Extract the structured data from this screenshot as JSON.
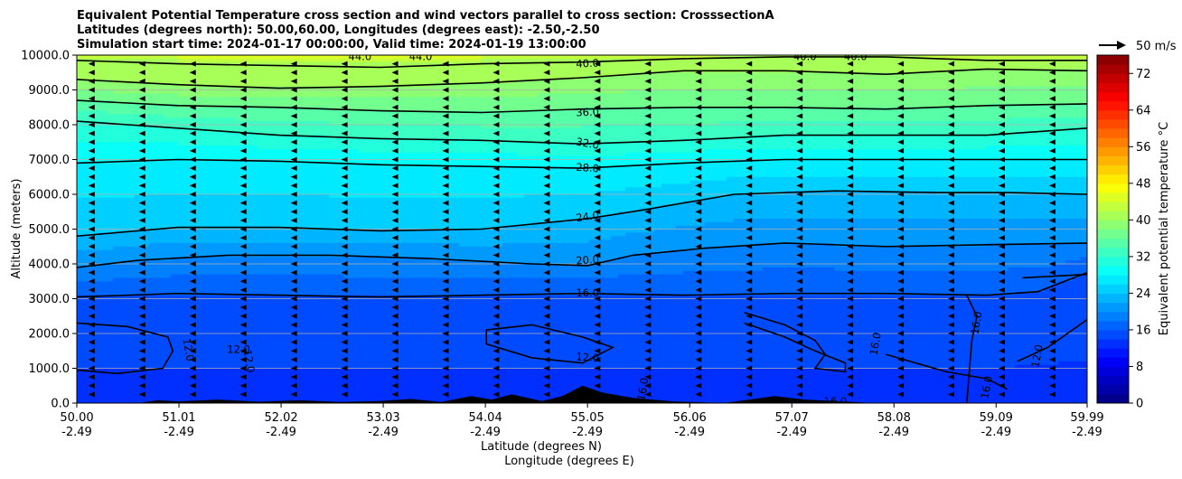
{
  "chart_data": {
    "type": "heatmap",
    "title": [
      "Equivalent Potential Temperature cross section and wind vectors parallel to cross section: CrosssectionA",
      "Latitudes (degrees north): 50.00,60.00, Longitudes (degrees east): -2.50,-2.50",
      "Simulation start time: 2024-01-17 00:00:00, Valid time: 2024-01-19 13:00:00"
    ],
    "xlabel": [
      "Latitude (degrees N)",
      "Longitude (degrees E)"
    ],
    "ylabel": "Altitude (meters)",
    "colorbar_label": "Equivalent potential temperature °C",
    "x_tick_labels": [
      {
        "lat": "50.00",
        "lon": "-2.49"
      },
      {
        "lat": "51.01",
        "lon": "-2.49"
      },
      {
        "lat": "52.02",
        "lon": "-2.49"
      },
      {
        "lat": "53.03",
        "lon": "-2.49"
      },
      {
        "lat": "54.04",
        "lon": "-2.49"
      },
      {
        "lat": "55.05",
        "lon": "-2.49"
      },
      {
        "lat": "56.06",
        "lon": "-2.49"
      },
      {
        "lat": "57.07",
        "lon": "-2.49"
      },
      {
        "lat": "58.08",
        "lon": "-2.49"
      },
      {
        "lat": "59.09",
        "lon": "-2.49"
      },
      {
        "lat": "59.99",
        "lon": "-2.49"
      }
    ],
    "x_tick_values": [
      50.0,
      51.01,
      52.02,
      53.03,
      54.04,
      55.05,
      56.06,
      57.07,
      58.08,
      59.09,
      59.99
    ],
    "xlim": [
      50.0,
      59.99
    ],
    "y_tick_labels": [
      "0.0",
      "1000.0",
      "2000.0",
      "3000.0",
      "4000.0",
      "5000.0",
      "6000.0",
      "7000.0",
      "8000.0",
      "9000.0",
      "10000.0"
    ],
    "y_tick_values": [
      0,
      1000,
      2000,
      3000,
      4000,
      5000,
      6000,
      7000,
      8000,
      9000,
      10000
    ],
    "ylim": [
      0,
      10000
    ],
    "grid": "horizontal",
    "colorbar": {
      "range": [
        0,
        76
      ],
      "levels_step": 2,
      "ticks": [
        0,
        8,
        16,
        24,
        32,
        40,
        48,
        56,
        64,
        72
      ],
      "colormap": "jet"
    },
    "reference_vector": {
      "label": "50 m/s"
    },
    "contour_levels": [
      {
        "value": 12.0,
        "label": "12.0"
      },
      {
        "value": 16.0,
        "label": "16.0"
      },
      {
        "value": 20.0,
        "label": "20.0"
      },
      {
        "value": 24.0,
        "label": "24.0"
      },
      {
        "value": 28.0,
        "label": "28.0"
      },
      {
        "value": 32.0,
        "label": "32.0"
      },
      {
        "value": 36.0,
        "label": "36.0"
      },
      {
        "value": 40.0,
        "label": "40.0"
      },
      {
        "value": 44.0,
        "label": "44.0"
      }
    ],
    "contour_lines": [
      {
        "value": 16,
        "points": [
          [
            50.0,
            3050
          ],
          [
            51.0,
            3150
          ],
          [
            52.0,
            3100
          ],
          [
            53.0,
            3050
          ],
          [
            54.0,
            3100
          ],
          [
            55.0,
            3150
          ],
          [
            56.0,
            3100
          ],
          [
            57.0,
            3150
          ],
          [
            58.0,
            3150
          ],
          [
            59.0,
            3100
          ],
          [
            59.5,
            3200
          ],
          [
            59.99,
            3750
          ]
        ]
      },
      {
        "value": 20,
        "points": [
          [
            50.0,
            3900
          ],
          [
            50.6,
            4100
          ],
          [
            51.5,
            4250
          ],
          [
            52.5,
            4250
          ],
          [
            53.5,
            4150
          ],
          [
            54.5,
            4000
          ],
          [
            55.05,
            3950
          ],
          [
            55.5,
            4250
          ],
          [
            56.2,
            4450
          ],
          [
            57.0,
            4600
          ],
          [
            58.0,
            4500
          ],
          [
            59.0,
            4550
          ],
          [
            59.99,
            4600
          ]
        ]
      },
      {
        "value": 24,
        "points": [
          [
            50.0,
            4800
          ],
          [
            51.0,
            5050
          ],
          [
            52.0,
            5050
          ],
          [
            53.0,
            4950
          ],
          [
            54.0,
            5000
          ],
          [
            55.05,
            5300
          ],
          [
            55.6,
            5550
          ],
          [
            56.5,
            6000
          ],
          [
            57.5,
            6100
          ],
          [
            58.5,
            6050
          ],
          [
            59.2,
            6050
          ],
          [
            59.99,
            6000
          ]
        ]
      },
      {
        "value": 28,
        "points": [
          [
            50.0,
            6900
          ],
          [
            51.0,
            7000
          ],
          [
            52.0,
            6950
          ],
          [
            53.0,
            6850
          ],
          [
            54.0,
            6800
          ],
          [
            55.0,
            6750
          ],
          [
            56.0,
            6900
          ],
          [
            57.0,
            7000
          ],
          [
            58.0,
            7000
          ],
          [
            59.0,
            7000
          ],
          [
            59.99,
            7000
          ]
        ]
      },
      {
        "value": 32,
        "points": [
          [
            50.0,
            8100
          ],
          [
            51.0,
            7900
          ],
          [
            52.0,
            7700
          ],
          [
            53.0,
            7600
          ],
          [
            54.0,
            7550
          ],
          [
            55.0,
            7450
          ],
          [
            56.0,
            7550
          ],
          [
            57.0,
            7700
          ],
          [
            58.0,
            7700
          ],
          [
            59.0,
            7700
          ],
          [
            59.99,
            7900
          ]
        ]
      },
      {
        "value": 36,
        "points": [
          [
            50.0,
            8700
          ],
          [
            51.0,
            8550
          ],
          [
            52.0,
            8500
          ],
          [
            53.0,
            8400
          ],
          [
            54.0,
            8350
          ],
          [
            55.0,
            8450
          ],
          [
            56.0,
            8500
          ],
          [
            57.0,
            8500
          ],
          [
            58.0,
            8450
          ],
          [
            59.0,
            8550
          ],
          [
            59.99,
            8600
          ]
        ]
      },
      {
        "value": 40,
        "points": [
          [
            50.0,
            9300
          ],
          [
            51.0,
            9150
          ],
          [
            52.0,
            9050
          ],
          [
            53.0,
            9100
          ],
          [
            54.0,
            9200
          ],
          [
            55.0,
            9350
          ],
          [
            56.0,
            9550
          ],
          [
            57.0,
            9550
          ],
          [
            58.0,
            9450
          ],
          [
            59.0,
            9600
          ],
          [
            59.99,
            9550
          ]
        ]
      },
      {
        "value": 40,
        "points": [
          [
            50.0,
            9850
          ],
          [
            51.0,
            9750
          ],
          [
            52.0,
            9700
          ],
          [
            53.0,
            9650
          ],
          [
            54.0,
            9750
          ],
          [
            55.0,
            9800
          ],
          [
            56.0,
            9900
          ],
          [
            57.0,
            9950
          ],
          [
            58.0,
            9950
          ],
          [
            59.0,
            9850
          ],
          [
            59.99,
            9850
          ]
        ]
      },
      {
        "value": 12,
        "points": [
          [
            50.0,
            2300
          ],
          [
            50.5,
            2200
          ],
          [
            50.9,
            1900
          ],
          [
            50.95,
            1500
          ],
          [
            50.85,
            1000
          ],
          [
            50.4,
            850
          ],
          [
            50.0,
            950
          ]
        ]
      },
      {
        "value": 12,
        "points": [
          [
            54.05,
            2100
          ],
          [
            54.5,
            2250
          ],
          [
            55.0,
            1900
          ],
          [
            55.3,
            1600
          ],
          [
            55.0,
            1150
          ],
          [
            54.5,
            1300
          ],
          [
            54.05,
            1700
          ],
          [
            54.05,
            2100
          ]
        ]
      },
      {
        "value": 16,
        "points": [
          [
            56.6,
            2600
          ],
          [
            57.0,
            2250
          ],
          [
            57.3,
            1800
          ],
          [
            57.4,
            1400
          ],
          [
            57.3,
            1000
          ],
          [
            57.6,
            900
          ],
          [
            57.6,
            1150
          ],
          [
            57.3,
            1500
          ],
          [
            57.0,
            1900
          ],
          [
            56.6,
            2300
          ]
        ]
      },
      {
        "value": 16,
        "points": [
          [
            58.0,
            1400
          ],
          [
            58.6,
            900
          ],
          [
            59.0,
            700
          ],
          [
            59.2,
            400
          ]
        ]
      },
      {
        "value": 16,
        "points": [
          [
            59.35,
            3600
          ],
          [
            59.99,
            3700
          ]
        ]
      },
      {
        "value": 12,
        "points": [
          [
            59.3,
            1200
          ],
          [
            59.6,
            1600
          ],
          [
            59.99,
            2400
          ]
        ]
      },
      {
        "value": 16,
        "points": [
          [
            58.8,
            3100
          ],
          [
            58.9,
            2500
          ],
          [
            58.85,
            1800
          ],
          [
            58.8,
            0
          ]
        ]
      }
    ],
    "contour_label_marks": [
      {
        "text": "44.0",
        "x": 52.8,
        "y": 9950,
        "rot": 0
      },
      {
        "text": "44.0",
        "x": 53.4,
        "y": 9950,
        "rot": 0
      },
      {
        "text": "40.0",
        "x": 55.05,
        "y": 9750,
        "rot": -3
      },
      {
        "text": "40.0",
        "x": 57.2,
        "y": 9950,
        "rot": 0
      },
      {
        "text": "40.0",
        "x": 57.7,
        "y": 9950,
        "rot": 0
      },
      {
        "text": "36.0",
        "x": 55.05,
        "y": 8350,
        "rot": -2
      },
      {
        "text": "32.0",
        "x": 55.05,
        "y": 7450,
        "rot": 10
      },
      {
        "text": "28.0",
        "x": 55.05,
        "y": 6750,
        "rot": 4
      },
      {
        "text": "24.0",
        "x": 55.05,
        "y": 5350,
        "rot": -8
      },
      {
        "text": "20.0",
        "x": 55.05,
        "y": 4100,
        "rot": -4
      },
      {
        "text": "16.0",
        "x": 55.05,
        "y": 3150,
        "rot": 0
      },
      {
        "text": "12.0",
        "x": 55.05,
        "y": 1300,
        "rot": 4
      },
      {
        "text": "12.0",
        "x": 51.6,
        "y": 1530,
        "rot": 0
      },
      {
        "text": "12.0",
        "x": 51.1,
        "y": 1530,
        "rot": 80
      },
      {
        "text": "12.0",
        "x": 51.7,
        "y": 1200,
        "rot": 80
      },
      {
        "text": "16.0",
        "x": 58.9,
        "y": 2300,
        "rot": -80
      },
      {
        "text": "16.0",
        "x": 57.9,
        "y": 1700,
        "rot": -80
      },
      {
        "text": "16.0",
        "x": 59.0,
        "y": 450,
        "rot": -80
      },
      {
        "text": "12.0",
        "x": 59.5,
        "y": 1350,
        "rot": -80
      },
      {
        "text": "16.0",
        "x": 57.5,
        "y": 40,
        "rot": 0
      },
      {
        "text": "16.0",
        "x": 55.6,
        "y": 400,
        "rot": -80
      }
    ],
    "terrain_profile": [
      [
        50.0,
        0
      ],
      [
        50.6,
        0
      ],
      [
        50.8,
        80
      ],
      [
        51.0,
        50
      ],
      [
        51.4,
        100
      ],
      [
        51.8,
        40
      ],
      [
        52.2,
        80
      ],
      [
        52.6,
        30
      ],
      [
        53.0,
        60
      ],
      [
        53.3,
        120
      ],
      [
        53.6,
        30
      ],
      [
        53.9,
        200
      ],
      [
        54.1,
        100
      ],
      [
        54.3,
        250
      ],
      [
        54.6,
        60
      ],
      [
        54.8,
        200
      ],
      [
        55.0,
        500
      ],
      [
        55.2,
        300
      ],
      [
        55.5,
        150
      ],
      [
        55.9,
        50
      ],
      [
        56.4,
        0
      ],
      [
        56.9,
        200
      ],
      [
        57.2,
        100
      ],
      [
        57.5,
        60
      ],
      [
        57.9,
        0
      ],
      [
        59.99,
        0
      ]
    ],
    "wind_vectors": {
      "direction": "leftward",
      "x_step": 0.5,
      "y_step": 500
    }
  }
}
